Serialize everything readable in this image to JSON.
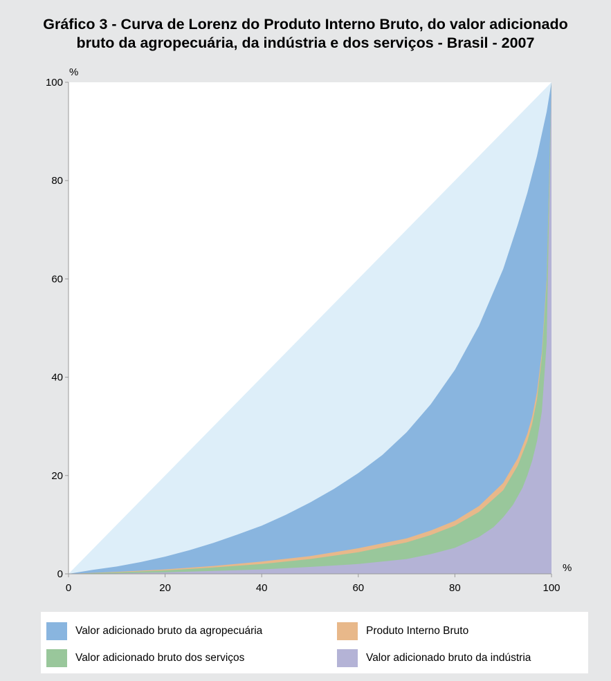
{
  "chart_data": {
    "type": "area",
    "title_lines": [
      "Gráfico 3 - Curva de Lorenz do Produto Interno Bruto, do valor adicionado",
      "bruto da agropecuária, da indústria e dos serviços - Brasil - 2007"
    ],
    "xlabel": "%",
    "ylabel": "%",
    "xlim": [
      0,
      100
    ],
    "ylim": [
      0,
      100
    ],
    "x_ticks": [
      0,
      20,
      40,
      60,
      80,
      100
    ],
    "y_ticks": [
      0,
      20,
      40,
      60,
      80,
      100
    ],
    "grid": false,
    "legend_position": "bottom",
    "equality_line": {
      "x": [
        0,
        100
      ],
      "y": [
        0,
        100
      ],
      "color": "#ddeef9"
    },
    "series": [
      {
        "name": "Valor adicionado bruto da agropecuária",
        "color": "#89b5df",
        "x": [
          0,
          5,
          10,
          15,
          20,
          25,
          30,
          35,
          40,
          45,
          50,
          55,
          60,
          65,
          70,
          75,
          80,
          85,
          90,
          93,
          95,
          97,
          98,
          99,
          100
        ],
        "y": [
          0,
          0.8,
          1.5,
          2.4,
          3.5,
          4.8,
          6.3,
          8.0,
          9.8,
          12.0,
          14.5,
          17.3,
          20.5,
          24.2,
          28.8,
          34.5,
          41.5,
          50.5,
          62.0,
          71.0,
          77.5,
          85.0,
          89.5,
          94.0,
          100
        ]
      },
      {
        "name": "Produto Interno Bruto",
        "color": "#e8b88a",
        "x": [
          0,
          10,
          20,
          30,
          40,
          50,
          60,
          70,
          75,
          80,
          85,
          90,
          93,
          95,
          96,
          97,
          98,
          99,
          100
        ],
        "y": [
          0,
          0.4,
          0.9,
          1.6,
          2.5,
          3.6,
          5.2,
          7.2,
          8.8,
          10.8,
          13.8,
          18.5,
          23.5,
          28.5,
          32.0,
          37.0,
          45.0,
          60.0,
          100
        ]
      },
      {
        "name": "Valor adicionado bruto dos serviços",
        "color": "#99c79b",
        "x": [
          0,
          10,
          20,
          30,
          40,
          50,
          60,
          70,
          75,
          80,
          85,
          90,
          93,
          95,
          96,
          97,
          98,
          99,
          100
        ],
        "y": [
          0,
          0.3,
          0.7,
          1.3,
          2.0,
          3.0,
          4.4,
          6.4,
          7.9,
          9.8,
          12.6,
          17.0,
          22.0,
          27.0,
          30.5,
          35.5,
          44.0,
          59.0,
          100
        ]
      },
      {
        "name": "Valor adicionado bruto da indústria",
        "color": "#b4b3d6",
        "x": [
          0,
          10,
          20,
          30,
          40,
          50,
          60,
          70,
          75,
          80,
          85,
          88,
          90,
          92,
          94,
          95,
          96,
          97,
          98,
          99,
          100
        ],
        "y": [
          0,
          0.1,
          0.3,
          0.6,
          0.9,
          1.4,
          2.0,
          3.0,
          4.0,
          5.3,
          7.5,
          9.5,
          11.5,
          14.0,
          17.5,
          20.0,
          23.0,
          27.0,
          33.0,
          47.0,
          100
        ]
      }
    ]
  },
  "legend": {
    "items": [
      {
        "label": "Valor adicionado bruto da agropecuária",
        "color": "#89b5df"
      },
      {
        "label": "Produto Interno Bruto",
        "color": "#e8b88a"
      },
      {
        "label": "Valor adicionado bruto dos serviços",
        "color": "#99c79b"
      },
      {
        "label": "Valor adicionado bruto da indústria",
        "color": "#b4b3d6"
      }
    ]
  },
  "colors": {
    "background": "#e6e7e8",
    "plot_background": "#ffffff",
    "axis": "#999999"
  }
}
